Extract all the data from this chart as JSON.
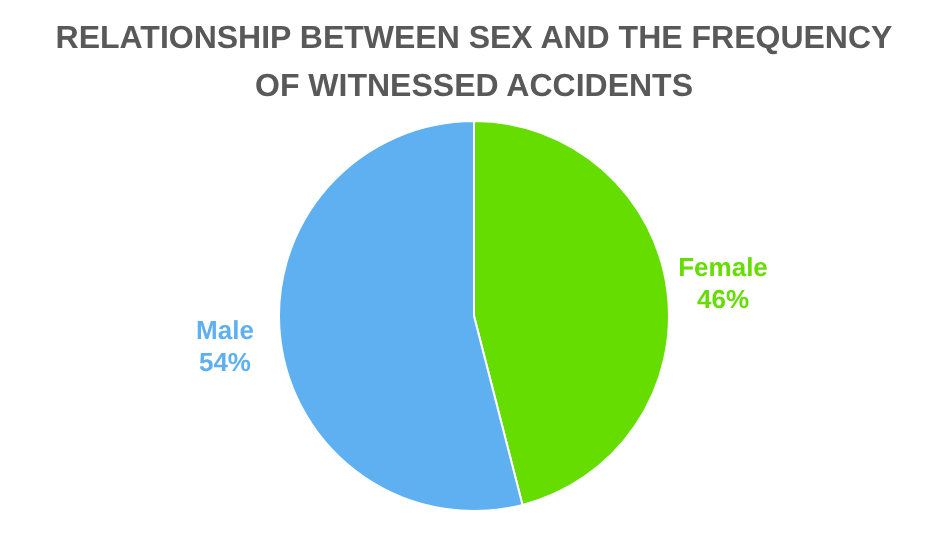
{
  "chart_data": {
    "type": "pie",
    "title": "RELATIONSHIP BETWEEN SEX AND THE FREQUENCY OF WITNESSED ACCIDENTS",
    "categories": [
      "Female",
      "Male"
    ],
    "values": [
      46,
      54
    ],
    "colors": [
      "#66dd00",
      "#5eb0f0"
    ],
    "value_labels": [
      "46%",
      "54%"
    ],
    "legend": false
  }
}
